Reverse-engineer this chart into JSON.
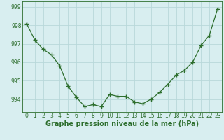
{
  "x": [
    0,
    1,
    2,
    3,
    4,
    5,
    6,
    7,
    8,
    9,
    10,
    11,
    12,
    13,
    14,
    15,
    16,
    17,
    18,
    19,
    20,
    21,
    22,
    23
  ],
  "y": [
    998.1,
    997.2,
    996.7,
    996.4,
    995.8,
    994.7,
    994.1,
    993.6,
    993.7,
    993.6,
    994.25,
    994.15,
    994.15,
    993.85,
    993.75,
    994.0,
    994.35,
    994.8,
    995.3,
    995.55,
    996.0,
    996.9,
    997.45,
    998.9
  ],
  "xlim": [
    -0.5,
    23.5
  ],
  "ylim": [
    993.3,
    999.3
  ],
  "yticks": [
    994,
    995,
    996,
    997,
    998,
    999
  ],
  "xticks": [
    0,
    1,
    2,
    3,
    4,
    5,
    6,
    7,
    8,
    9,
    10,
    11,
    12,
    13,
    14,
    15,
    16,
    17,
    18,
    19,
    20,
    21,
    22,
    23
  ],
  "xlabel": "Graphe pression niveau de la mer (hPa)",
  "line_color": "#2d6e2d",
  "marker": "+",
  "marker_size": 4,
  "bg_color": "#d8eef0",
  "grid_color": "#b8d8da",
  "tick_fontsize": 5.5,
  "xlabel_fontsize": 7.0
}
